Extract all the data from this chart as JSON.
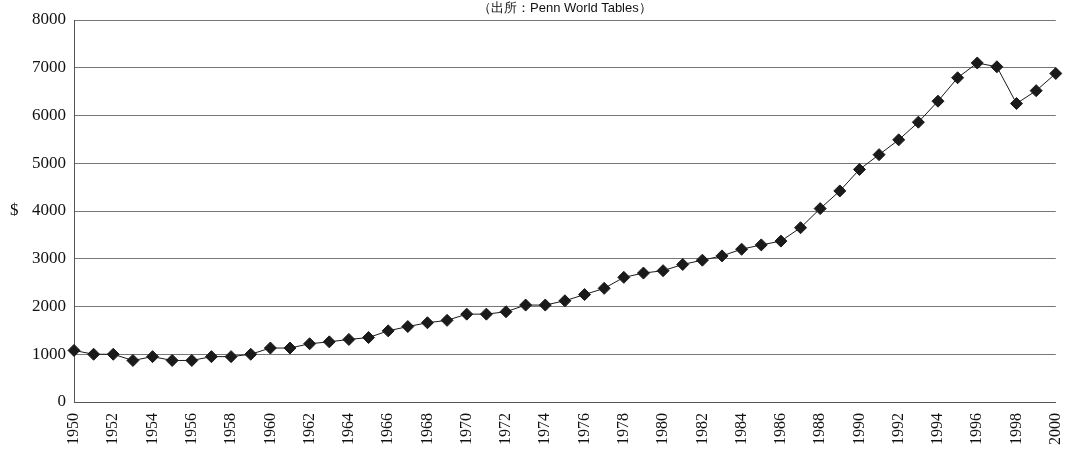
{
  "chart_data": {
    "type": "line",
    "annotations": [
      "（出所：Penn World Tables）"
    ],
    "ylabel": "$",
    "categories": [
      "1950",
      null,
      "1952",
      null,
      "1954",
      null,
      "1956",
      null,
      "1958",
      null,
      "1960",
      null,
      "1962",
      null,
      "1964",
      null,
      "1966",
      null,
      "1968",
      null,
      "1970",
      null,
      "1972",
      null,
      "1974",
      null,
      "1976",
      null,
      "1978",
      null,
      "1980",
      null,
      "1982",
      null,
      "1984",
      null,
      "1986",
      null,
      "1988",
      null,
      "1990",
      null,
      "1992",
      null,
      "1994",
      null,
      "1996",
      null,
      "1998",
      null,
      "2000"
    ],
    "series": [
      {
        "color": "#1a1a1a",
        "values": [
          1080,
          1000,
          1000,
          870,
          950,
          870,
          870,
          950,
          950,
          1000,
          1130,
          1130,
          1220,
          1260,
          1310,
          1350,
          1490,
          1580,
          1660,
          1710,
          1840,
          1840,
          1890,
          2030,
          2030,
          2120,
          2250,
          2380,
          2610,
          2700,
          2750,
          2880,
          2970,
          3060,
          3200,
          3290,
          3370,
          3650,
          4050,
          4420,
          4870,
          5180,
          5490,
          5860,
          6300,
          6790,
          7100,
          7020,
          6250,
          6520,
          6880
        ]
      }
    ],
    "ylim": [
      0,
      8000
    ],
    "yticks": [
      0,
      1000,
      2000,
      3000,
      4000,
      5000,
      6000,
      7000,
      8000
    ],
    "grid": "y",
    "legend": false,
    "marker": "diamond",
    "line_style": "solid"
  }
}
